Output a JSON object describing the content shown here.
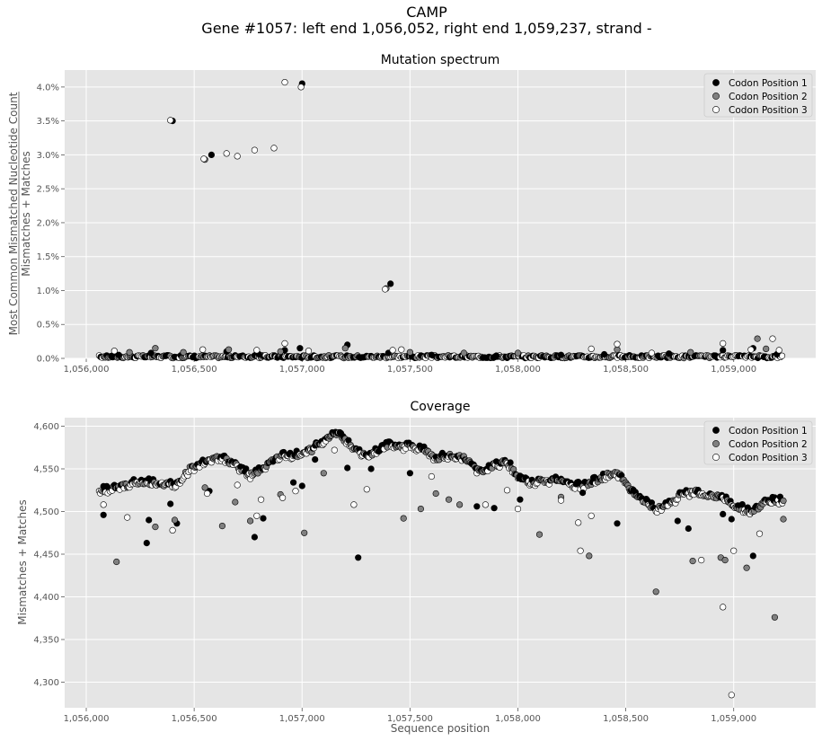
{
  "figure": {
    "title_line1": "CAMP",
    "title_line2": "Gene #1057: left end 1,056,052, right end 1,059,237, strand -"
  },
  "colors": {
    "codon1": "#000000",
    "codon2": "#808080",
    "codon3": "#ffffff",
    "panel_bg": "#e5e5e5",
    "grid": "#ffffff",
    "marker_edge": "#000000"
  },
  "chart_data": [
    {
      "type": "scatter",
      "title": "Mutation spectrum",
      "ylabel_numerator": "Most Common Mismatched Nucleotide Count",
      "ylabel_denominator": "Mismatches + Matches",
      "xlabel": "",
      "xlim": [
        1055900,
        1059380
      ],
      "ylim": [
        0,
        0.0425
      ],
      "x_ticks": [
        1056000,
        1056500,
        1057000,
        1057500,
        1058000,
        1058500,
        1059000
      ],
      "x_tick_labels": [
        "1,056,000",
        "1,056,500",
        "1,057,000",
        "1,057,500",
        "1,058,000",
        "1,058,500",
        "1,059,000"
      ],
      "y_ticks": [
        0,
        0.005,
        0.01,
        0.015,
        0.02,
        0.025,
        0.03,
        0.035,
        0.04
      ],
      "y_tick_labels": [
        "0.0%",
        "0.5%",
        "1.0%",
        "1.5%",
        "2.0%",
        "2.5%",
        "3.0%",
        "3.5%",
        "4.0%"
      ],
      "grid": true,
      "legend": "top-right",
      "series": [
        {
          "name": "Codon Position 1",
          "points": [
            [
              1056400,
              0.035
            ],
            [
              1056580,
              0.03
            ],
            [
              1057000,
              0.0405
            ],
            [
              1057410,
              0.011
            ],
            [
              1057210,
              0.002
            ],
            [
              1056990,
              0.0015
            ],
            [
              1056920,
              0.0012
            ],
            [
              1058950,
              0.0012
            ],
            [
              1059090,
              0.0015
            ],
            [
              1056650,
              0.001
            ],
            [
              1056300,
              0.0008
            ],
            [
              1057400,
              0.0008
            ],
            [
              1058400,
              0.0006
            ],
            [
              1058700,
              0.0007
            ],
            [
              1056150,
              0.0005
            ],
            [
              1057600,
              0.0005
            ],
            [
              1057900,
              0.0004
            ],
            [
              1058200,
              0.0005
            ],
            [
              1059200,
              0.0006
            ],
            [
              1056800,
              0.0006
            ]
          ]
        },
        {
          "name": "Codon Position 2",
          "points": [
            [
              1056550,
              0.0293
            ],
            [
              1057390,
              0.0103
            ],
            [
              1059110,
              0.0029
            ],
            [
              1056320,
              0.0015
            ],
            [
              1056660,
              0.0013
            ],
            [
              1057200,
              0.0015
            ],
            [
              1058460,
              0.0013
            ],
            [
              1059150,
              0.0014
            ],
            [
              1056200,
              0.0009
            ],
            [
              1056900,
              0.001
            ],
            [
              1057500,
              0.0009
            ],
            [
              1058000,
              0.0008
            ],
            [
              1058800,
              0.0009
            ],
            [
              1057750,
              0.0008
            ],
            [
              1056450,
              0.0009
            ]
          ]
        },
        {
          "name": "Codon Position 3",
          "points": [
            [
              1056390,
              0.0351
            ],
            [
              1056545,
              0.0294
            ],
            [
              1056650,
              0.0302
            ],
            [
              1056700,
              0.0298
            ],
            [
              1056780,
              0.0307
            ],
            [
              1056870,
              0.031
            ],
            [
              1056920,
              0.0407
            ],
            [
              1056995,
              0.04
            ],
            [
              1057385,
              0.0102
            ],
            [
              1059180,
              0.0029
            ],
            [
              1058460,
              0.0021
            ],
            [
              1058950,
              0.0022
            ],
            [
              1056920,
              0.0022
            ],
            [
              1056130,
              0.0011
            ],
            [
              1056540,
              0.0013
            ],
            [
              1056790,
              0.0012
            ],
            [
              1057030,
              0.0011
            ],
            [
              1057420,
              0.0012
            ],
            [
              1057460,
              0.0013
            ],
            [
              1058340,
              0.0014
            ],
            [
              1058620,
              0.0008
            ],
            [
              1059080,
              0.0013
            ],
            [
              1059210,
              0.0012
            ]
          ]
        }
      ]
    },
    {
      "type": "scatter",
      "title": "Coverage",
      "ylabel": "Mismatches + Matches",
      "xlabel": "Sequence position",
      "xlim": [
        1055900,
        1059380
      ],
      "ylim": [
        4270,
        4610
      ],
      "x_ticks": [
        1056000,
        1056500,
        1057000,
        1057500,
        1058000,
        1058500,
        1059000
      ],
      "x_tick_labels": [
        "1,056,000",
        "1,056,500",
        "1,057,000",
        "1,057,500",
        "1,058,000",
        "1,058,500",
        "1,059,000"
      ],
      "y_ticks": [
        4300,
        4350,
        4400,
        4450,
        4500,
        4550,
        4600
      ],
      "y_tick_labels": [
        "4,300",
        "4,350",
        "4,400",
        "4,450",
        "4,500",
        "4,550",
        "4,600"
      ],
      "grid": true,
      "legend": "top-right",
      "trend": [
        [
          1056052,
          4526
        ],
        [
          1056150,
          4530
        ],
        [
          1056250,
          4537
        ],
        [
          1056350,
          4535
        ],
        [
          1056420,
          4533
        ],
        [
          1056480,
          4552
        ],
        [
          1056550,
          4560
        ],
        [
          1056620,
          4566
        ],
        [
          1056700,
          4555
        ],
        [
          1056760,
          4545
        ],
        [
          1056820,
          4552
        ],
        [
          1056900,
          4568
        ],
        [
          1056980,
          4568
        ],
        [
          1057050,
          4575
        ],
        [
          1057120,
          4590
        ],
        [
          1057170,
          4594
        ],
        [
          1057230,
          4578
        ],
        [
          1057300,
          4568
        ],
        [
          1057350,
          4572
        ],
        [
          1057400,
          4580
        ],
        [
          1057480,
          4578
        ],
        [
          1057550,
          4577
        ],
        [
          1057620,
          4565
        ],
        [
          1057700,
          4568
        ],
        [
          1057760,
          4563
        ],
        [
          1057820,
          4548
        ],
        [
          1057880,
          4555
        ],
        [
          1057950,
          4560
        ],
        [
          1058000,
          4542
        ],
        [
          1058060,
          4536
        ],
        [
          1058120,
          4538
        ],
        [
          1058200,
          4538
        ],
        [
          1058280,
          4532
        ],
        [
          1058350,
          4537
        ],
        [
          1058420,
          4545
        ],
        [
          1058470,
          4546
        ],
        [
          1058520,
          4528
        ],
        [
          1058580,
          4515
        ],
        [
          1058640,
          4505
        ],
        [
          1058700,
          4510
        ],
        [
          1058760,
          4522
        ],
        [
          1058820,
          4526
        ],
        [
          1058880,
          4520
        ],
        [
          1058950,
          4518
        ],
        [
          1059020,
          4508
        ],
        [
          1059080,
          4500
        ],
        [
          1059140,
          4512
        ],
        [
          1059200,
          4515
        ],
        [
          1059237,
          4514
        ]
      ],
      "series": [
        {
          "name": "Codon Position 1",
          "points": [
            [
              1056080,
              4496
            ],
            [
              1056280,
              4463
            ],
            [
              1056290,
              4490
            ],
            [
              1056390,
              4509
            ],
            [
              1056420,
              4486
            ],
            [
              1056780,
              4470
            ],
            [
              1056820,
              4492
            ],
            [
              1056960,
              4534
            ],
            [
              1057000,
              4530
            ],
            [
              1057260,
              4446
            ],
            [
              1057210,
              4551
            ],
            [
              1057320,
              4550
            ],
            [
              1057810,
              4506
            ],
            [
              1057890,
              4504
            ],
            [
              1058010,
              4514
            ],
            [
              1058460,
              4486
            ],
            [
              1058740,
              4489
            ],
            [
              1058790,
              4480
            ],
            [
              1058950,
              4497
            ],
            [
              1058990,
              4491
            ],
            [
              1059090,
              4448
            ],
            [
              1056570,
              4524
            ],
            [
              1057060,
              4561
            ],
            [
              1057500,
              4545
            ],
            [
              1058300,
              4522
            ]
          ]
        },
        {
          "name": "Codon Position 2",
          "points": [
            [
              1056140,
              4441
            ],
            [
              1056320,
              4482
            ],
            [
              1056410,
              4490
            ],
            [
              1056630,
              4483
            ],
            [
              1056690,
              4511
            ],
            [
              1056760,
              4489
            ],
            [
              1056900,
              4520
            ],
            [
              1057010,
              4475
            ],
            [
              1057470,
              4492
            ],
            [
              1057550,
              4503
            ],
            [
              1057620,
              4521
            ],
            [
              1057680,
              4514
            ],
            [
              1057730,
              4508
            ],
            [
              1058100,
              4473
            ],
            [
              1058330,
              4448
            ],
            [
              1058640,
              4406
            ],
            [
              1058810,
              4442
            ],
            [
              1058940,
              4446
            ],
            [
              1058960,
              4443
            ],
            [
              1059060,
              4434
            ],
            [
              1059190,
              4376
            ],
            [
              1059230,
              4491
            ],
            [
              1056550,
              4528
            ],
            [
              1057100,
              4545
            ],
            [
              1058200,
              4517
            ]
          ]
        },
        {
          "name": "Codon Position 3",
          "points": [
            [
              1056080,
              4508
            ],
            [
              1056190,
              4493
            ],
            [
              1056400,
              4478
            ],
            [
              1056560,
              4521
            ],
            [
              1056790,
              4495
            ],
            [
              1056810,
              4514
            ],
            [
              1056910,
              4516
            ],
            [
              1056970,
              4524
            ],
            [
              1057240,
              4508
            ],
            [
              1057300,
              4526
            ],
            [
              1057850,
              4508
            ],
            [
              1057950,
              4525
            ],
            [
              1058000,
              4503
            ],
            [
              1058200,
              4513
            ],
            [
              1058280,
              4487
            ],
            [
              1058290,
              4454
            ],
            [
              1058340,
              4495
            ],
            [
              1058850,
              4443
            ],
            [
              1058950,
              4388
            ],
            [
              1058990,
              4285
            ],
            [
              1059000,
              4454
            ],
            [
              1059120,
              4474
            ],
            [
              1056700,
              4531
            ],
            [
              1057150,
              4572
            ],
            [
              1057600,
              4541
            ]
          ]
        }
      ]
    }
  ],
  "legend": {
    "items": [
      "Codon Position 1",
      "Codon Position 2",
      "Codon Position 3"
    ]
  }
}
